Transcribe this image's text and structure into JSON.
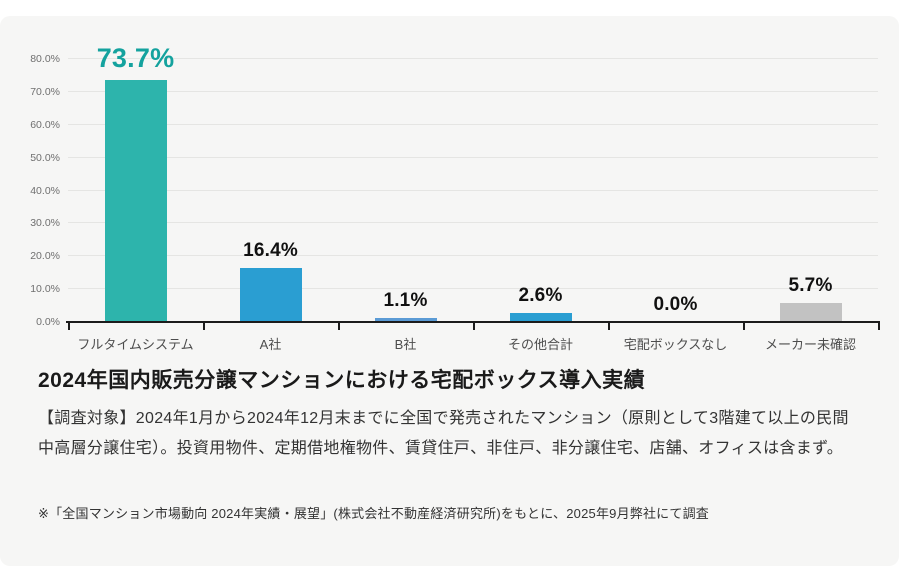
{
  "chart_data": {
    "type": "bar",
    "title": "2024年国内販売分譲マンションにおける宅配ボックス導入実績",
    "categories": [
      "フルタイムシステム",
      "A社",
      "B社",
      "その他合計",
      "宅配ボックスなし",
      "メーカー未確認"
    ],
    "values": [
      73.7,
      16.4,
      1.1,
      2.6,
      0.0,
      5.7
    ],
    "data_labels": [
      "73.7%",
      "16.4%",
      "1.1%",
      "2.6%",
      "0.0%",
      "5.7%"
    ],
    "bar_colors": [
      "#2db4ac",
      "#2a9ed2",
      "#5b9bd5",
      "#2a9ed2",
      "#2a9ed2",
      "#c2c2c2"
    ],
    "emphasized_index": 0,
    "emphasis_label_color": "#14a29e",
    "label_color": "#111111",
    "yaxis": {
      "min": 0,
      "max": 80,
      "step": 10,
      "tick_labels": [
        "0.0%",
        "10.0%",
        "20.0%",
        "30.0%",
        "40.0%",
        "50.0%",
        "60.0%",
        "70.0%",
        "80.0%"
      ]
    },
    "grid": true,
    "legend": false,
    "xlabel": "",
    "ylabel": ""
  },
  "heading": {
    "title": "2024年国内販売分譲マンションにおける宅配ボックス導入実績"
  },
  "notes": {
    "survey_scope": "【調査対象】2024年1月から2024年12月末までに全国で発売されたマンション（原則として3階建て以上の民間中高層分譲住宅）。投資用物件、定期借地権物件、賃貸住戸、非住戸、非分譲住宅、店舗、オフィスは含まず。",
    "source": "※「全国マンション市場動向 2024年実績・展望」(株式会社不動産経済研究所)をもとに、2025年9月弊社にて調査"
  }
}
